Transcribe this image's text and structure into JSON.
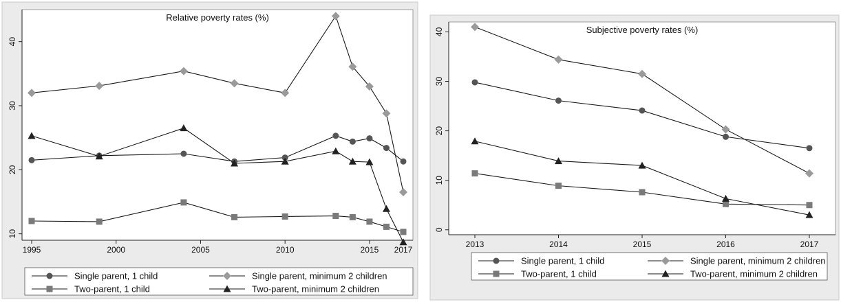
{
  "chart_data": [
    {
      "type": "line",
      "title": "Relative poverty rates (%)",
      "xlabel": "",
      "ylabel": "",
      "x_ticks": [
        1995,
        2000,
        2005,
        2010,
        2015,
        2017
      ],
      "y_ticks": [
        10,
        20,
        30,
        40
      ],
      "xlim": [
        1995,
        2017
      ],
      "ylim": [
        9,
        45
      ],
      "grid": false,
      "legend_position": "bottom",
      "series": [
        {
          "name": "Single parent, 1 child",
          "marker": "circle",
          "color": "#555555",
          "x": [
            1995,
            1999,
            2004,
            2007,
            2010,
            2013,
            2014,
            2015,
            2016,
            2017
          ],
          "y": [
            21.5,
            22.2,
            22.5,
            21.3,
            21.9,
            25.3,
            24.4,
            24.9,
            23.4,
            21.3
          ]
        },
        {
          "name": "Single parent, minimum 2 children",
          "marker": "diamond",
          "color": "#9a9a9a",
          "x": [
            1995,
            1999,
            2004,
            2007,
            2010,
            2013,
            2014,
            2015,
            2016,
            2017
          ],
          "y": [
            32.0,
            33.1,
            35.4,
            33.5,
            32.0,
            44.0,
            36.1,
            33.0,
            28.8,
            16.5
          ]
        },
        {
          "name": "Two-parent, 1 child",
          "marker": "square",
          "color": "#7a7a7a",
          "x": [
            1995,
            1999,
            2004,
            2007,
            2010,
            2013,
            2014,
            2015,
            2016,
            2017
          ],
          "y": [
            12.0,
            11.9,
            14.9,
            12.6,
            12.7,
            12.8,
            12.6,
            11.9,
            11.1,
            10.3
          ]
        },
        {
          "name": "Two-parent, minimum 2 children",
          "marker": "triangle",
          "color": "#222222",
          "x": [
            1995,
            1999,
            2004,
            2007,
            2010,
            2013,
            2014,
            2015,
            2016,
            2017
          ],
          "y": [
            25.3,
            22.1,
            26.5,
            21.0,
            21.3,
            22.9,
            21.3,
            21.2,
            13.9,
            8.7
          ]
        }
      ]
    },
    {
      "type": "line",
      "title": "Subjective poverty rates (%)",
      "xlabel": "",
      "ylabel": "",
      "x_ticks": [
        2013,
        2014,
        2015,
        2016,
        2017
      ],
      "y_ticks": [
        0,
        10,
        20,
        30,
        40
      ],
      "xlim": [
        2013,
        2017
      ],
      "ylim": [
        -1,
        42
      ],
      "grid": false,
      "legend_position": "bottom",
      "series": [
        {
          "name": "Single parent, 1 child",
          "marker": "circle",
          "color": "#555555",
          "x": [
            2013,
            2014,
            2015,
            2016,
            2017
          ],
          "y": [
            29.8,
            26.1,
            24.1,
            18.8,
            16.5
          ]
        },
        {
          "name": "Single parent, minimum 2 children",
          "marker": "diamond",
          "color": "#9a9a9a",
          "x": [
            2013,
            2014,
            2015,
            2016,
            2017
          ],
          "y": [
            41.0,
            34.4,
            31.5,
            20.3,
            11.4
          ]
        },
        {
          "name": "Two-parent, 1 child",
          "marker": "square",
          "color": "#7a7a7a",
          "x": [
            2013,
            2014,
            2015,
            2016,
            2017
          ],
          "y": [
            11.4,
            8.9,
            7.6,
            5.2,
            5.0
          ]
        },
        {
          "name": "Two-parent, minimum 2 children",
          "marker": "triangle",
          "color": "#222222",
          "x": [
            2013,
            2014,
            2015,
            2016,
            2017
          ],
          "y": [
            17.9,
            13.9,
            13.0,
            6.3,
            3.0
          ]
        }
      ]
    }
  ]
}
